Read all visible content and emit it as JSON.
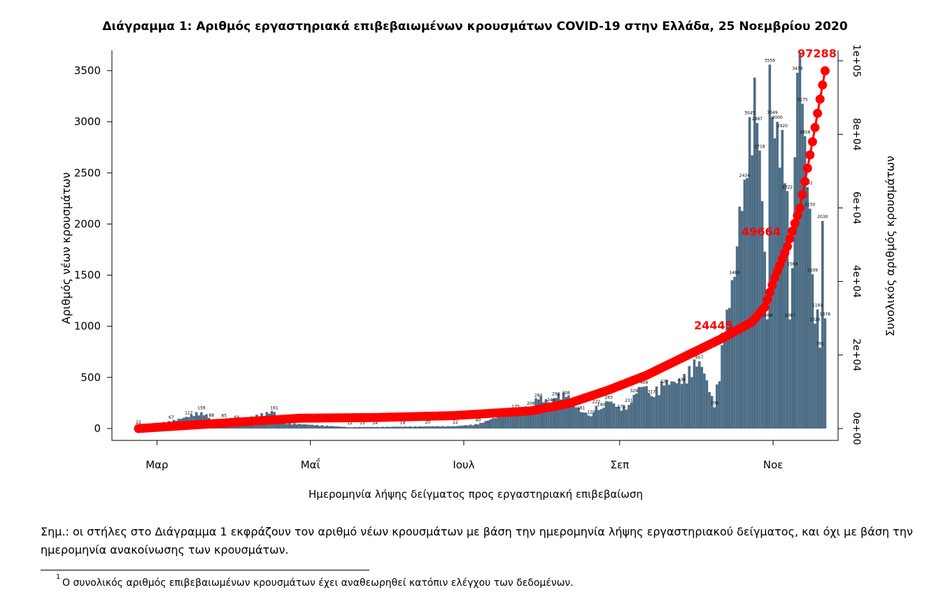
{
  "title": "Διάγραμμα 1: Αριθμός εργαστηριακά επιβεβαιωμένων κρουσμάτων COVID-19 στην Ελλάδα, 25 Νοεμβρίου 2020",
  "note": "Σημ.:  οι στήλες στο Διάγραμμα 1 εκφράζουν τον αριθμό νέων κρουσμάτων με βάση την ημερομηνία λήψης εργαστηριακού δείγματος, και όχι με βάση την ημερομηνία ανακοίνωσης των κρουσμάτων.",
  "footnote_mark": "1",
  "footnote": "Ο συνολικός αριθμός επιβεβαιωμένων κρουσμάτων έχει αναθεωρηθεί κατόπιν ελέγχου των δεδομένων.",
  "colors": {
    "bars": "#4d6d86",
    "cumulative": "#ff0000",
    "axis": "#000000"
  },
  "chart_data": {
    "type": "bar",
    "title": "Διάγραμμα 1: Αριθμός εργαστηριακά επιβεβαιωμένων κρουσμάτων COVID-19 στην Ελλάδα, 25 Νοεμβρίου 2020",
    "xlabel": "Ημερομηνία λήψης δείγματος προς εργαστηριακή επιβεβαίωση",
    "ylabel": "Αριθμός νέων κρουσμάτων",
    "ylabel_right": "Συνολικός αριθμός κρουσμάτων",
    "x_ticks": [
      "Μαρ",
      "Μαΐ",
      "Ιουλ",
      "Σεπ",
      "Νοε"
    ],
    "y_ticks": [
      "0",
      "500",
      "1000",
      "1500",
      "2000",
      "2500",
      "3000",
      "3500"
    ],
    "y2_ticks": [
      "0e+00",
      "2e+04",
      "4e+04",
      "6e+04",
      "8e+04",
      "1e+05"
    ],
    "ylim": [
      0,
      3600
    ],
    "y2lim": [
      0,
      100000
    ],
    "grid": false,
    "series": [
      {
        "type": "bar",
        "x": [
          "2020-02-26",
          "2020-03-10",
          "2020-03-17",
          "2020-03-22",
          "2020-03-26",
          "2020-03-31",
          "2020-04-05",
          "2020-04-20",
          "2020-04-22",
          "2020-05-20",
          "2020-05-25",
          "2020-05-30",
          "2020-06-10",
          "2020-06-20",
          "2020-07-01",
          "2020-07-10",
          "2020-07-20",
          "2020-07-25",
          "2020-07-31",
          "2020-08-03",
          "2020-08-08",
          "2020-08-10",
          "2020-08-14",
          "2020-08-20",
          "2020-08-24",
          "2020-08-26",
          "2020-08-28",
          "2020-08-31",
          "2020-09-05",
          "2020-09-08",
          "2020-09-10",
          "2020-09-14",
          "2020-09-17",
          "2020-09-22",
          "2020-09-29",
          "2020-10-06",
          "2020-10-12",
          "2020-10-16",
          "2020-10-20",
          "2020-10-24",
          "2020-10-26",
          "2020-10-29",
          "2020-10-30",
          "2020-11-02",
          "2020-11-03",
          "2020-11-04",
          "2020-11-06",
          "2020-11-08",
          "2020-11-10",
          "2020-11-11",
          "2020-11-12",
          "2020-11-14",
          "2020-11-16",
          "2020-11-17",
          "2020-11-18",
          "2020-11-19",
          "2020-11-20",
          "2020-11-21",
          "2020-11-22",
          "2020-11-23",
          "2020-11-24",
          "2020-11-25"
        ],
        "values": [
          22,
          67,
          112,
          159,
          88,
          85,
          69,
          161,
          53,
          12,
          15,
          14,
          18,
          20,
          22,
          40,
          128,
          175,
          206,
          284,
          240,
          298,
          308,
          161,
          120,
          222,
          190,
          263,
          175,
          231,
          329,
          409,
          317,
          420,
          436,
          657,
          208,
          880,
          1483,
          2434,
          3045,
          2987,
          2718,
          1068,
          3559,
          3049,
          3000,
          2920,
          2322,
          1067,
          1569,
          3479,
          3175,
          2858,
          2361,
          2150,
          1509,
          1026,
          1164,
          791,
          2030,
          1078
        ]
      },
      {
        "type": "line",
        "name": "cumulative",
        "x": [
          "2020-02-26",
          "2020-03-31",
          "2020-04-30",
          "2020-05-31",
          "2020-06-30",
          "2020-07-31",
          "2020-08-15",
          "2020-08-31",
          "2020-09-15",
          "2020-09-30",
          "2020-10-15",
          "2020-10-27",
          "2020-11-01",
          "2020-11-05",
          "2020-11-10",
          "2020-11-15",
          "2020-11-20",
          "2020-11-25"
        ],
        "values": [
          0,
          1500,
          2800,
          3000,
          3500,
          4800,
          6800,
          10500,
          14500,
          19500,
          24500,
          29000,
          33000,
          41000,
          49500,
          60000,
          78000,
          97288
        ]
      }
    ],
    "annotations": [
      "97288",
      "49664",
      "24445"
    ]
  }
}
